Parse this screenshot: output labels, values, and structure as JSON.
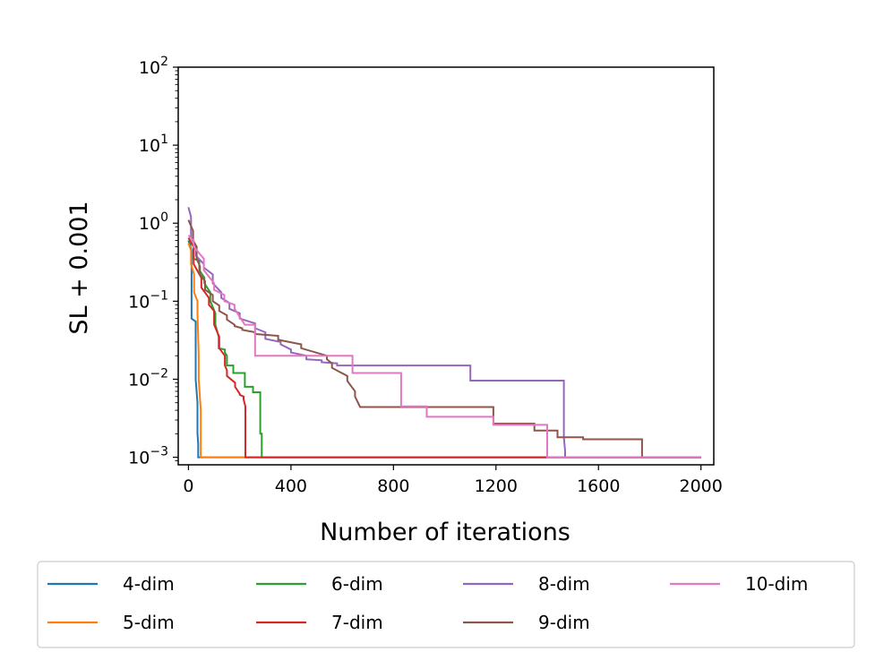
{
  "chart_data": {
    "type": "line",
    "title": "",
    "xlabel": "Number of iterations",
    "ylabel": "SL + 0.001",
    "yscale": "log",
    "xlim": [
      -40,
      2050
    ],
    "ylim": [
      0.0008,
      100
    ],
    "xticks": [
      0,
      400,
      800,
      1200,
      1600,
      2000
    ],
    "xtick_labels": [
      "0",
      "400",
      "800",
      "1200",
      "1600",
      "2000"
    ],
    "yticks": [
      {
        "value": 100,
        "base": "10",
        "exp": "2"
      },
      {
        "value": 10,
        "base": "10",
        "exp": "1"
      },
      {
        "value": 1,
        "base": "10",
        "exp": "0"
      },
      {
        "value": 0.1,
        "base": "10",
        "exp": "−1"
      },
      {
        "value": 0.01,
        "base": "10",
        "exp": "−2"
      },
      {
        "value": 0.001,
        "base": "10",
        "exp": "−3"
      }
    ],
    "legend_position": "below",
    "series": [
      {
        "name": "4-dim",
        "color": "#1f77b4",
        "x": [
          0,
          12,
          12,
          28,
          28,
          35,
          35,
          38,
          38,
          2000
        ],
        "y": [
          0.6,
          0.45,
          0.06,
          0.055,
          0.01,
          0.005,
          0.002,
          0.0015,
          0.001,
          0.001
        ]
      },
      {
        "name": "5-dim",
        "color": "#ff7f0e",
        "x": [
          0,
          10,
          10,
          22,
          22,
          35,
          35,
          40,
          40,
          48,
          48,
          2000
        ],
        "y": [
          0.55,
          0.45,
          0.3,
          0.22,
          0.13,
          0.1,
          0.07,
          0.02,
          0.01,
          0.004,
          0.001,
          0.001
        ]
      },
      {
        "name": "6-dim",
        "color": "#2ca02c",
        "x": [
          0,
          20,
          20,
          42,
          42,
          62,
          62,
          85,
          85,
          105,
          105,
          118,
          118,
          142,
          142,
          150,
          150,
          175,
          175,
          220,
          220,
          252,
          252,
          280,
          280,
          286,
          286,
          2000
        ],
        "y": [
          0.6,
          0.5,
          0.35,
          0.33,
          0.25,
          0.2,
          0.17,
          0.13,
          0.1,
          0.07,
          0.05,
          0.035,
          0.025,
          0.024,
          0.022,
          0.02,
          0.015,
          0.015,
          0.012,
          0.012,
          0.008,
          0.008,
          0.0068,
          0.0068,
          0.002,
          0.002,
          0.001,
          0.001
        ]
      },
      {
        "name": "7-dim",
        "color": "#d62728",
        "x": [
          0,
          20,
          20,
          50,
          50,
          80,
          80,
          100,
          100,
          120,
          120,
          142,
          142,
          150,
          150,
          182,
          182,
          200,
          200,
          215,
          215,
          222,
          222,
          2000
        ],
        "y": [
          0.65,
          0.5,
          0.3,
          0.2,
          0.15,
          0.11,
          0.09,
          0.075,
          0.05,
          0.035,
          0.025,
          0.02,
          0.015,
          0.013,
          0.011,
          0.009,
          0.008,
          0.0065,
          0.0063,
          0.006,
          0.0055,
          0.0045,
          0.001,
          0.001
        ]
      },
      {
        "name": "8-dim",
        "color": "#9467bd",
        "x": [
          0,
          10,
          10,
          30,
          30,
          60,
          60,
          95,
          95,
          128,
          128,
          160,
          160,
          200,
          200,
          260,
          260,
          300,
          300,
          360,
          360,
          400,
          400,
          460,
          460,
          520,
          520,
          580,
          580,
          610,
          610,
          1100,
          1100,
          1465,
          1465,
          1470,
          1470,
          2000
        ],
        "y": [
          1.6,
          1.2,
          0.65,
          0.5,
          0.38,
          0.3,
          0.27,
          0.22,
          0.17,
          0.13,
          0.11,
          0.095,
          0.08,
          0.07,
          0.06,
          0.052,
          0.045,
          0.04,
          0.033,
          0.03,
          0.028,
          0.024,
          0.022,
          0.02,
          0.018,
          0.0175,
          0.0165,
          0.016,
          0.015,
          0.015,
          0.015,
          0.015,
          0.0096,
          0.0096,
          0.0018,
          0.0012,
          0.001,
          0.001
        ]
      },
      {
        "name": "9-dim",
        "color": "#8c564b",
        "x": [
          0,
          18,
          18,
          32,
          32,
          45,
          45,
          65,
          65,
          95,
          95,
          120,
          120,
          150,
          150,
          180,
          180,
          210,
          210,
          260,
          260,
          350,
          350,
          440,
          440,
          540,
          540,
          560,
          560,
          620,
          620,
          650,
          650,
          670,
          670,
          1100,
          1100,
          1190,
          1190,
          1350,
          1350,
          1440,
          1440,
          1540,
          1540,
          1580,
          1580,
          1770,
          1770,
          2000
        ],
        "y": [
          1.1,
          0.8,
          0.6,
          0.5,
          0.35,
          0.28,
          0.22,
          0.18,
          0.14,
          0.12,
          0.1,
          0.088,
          0.075,
          0.066,
          0.058,
          0.05,
          0.048,
          0.045,
          0.043,
          0.04,
          0.038,
          0.036,
          0.032,
          0.028,
          0.025,
          0.02,
          0.018,
          0.016,
          0.014,
          0.011,
          0.0095,
          0.007,
          0.006,
          0.0044,
          0.0044,
          0.0044,
          0.0044,
          0.0044,
          0.0027,
          0.0027,
          0.0022,
          0.0022,
          0.0018,
          0.0018,
          0.0017,
          0.0017,
          0.0017,
          0.0017,
          0.001,
          0.001
        ]
      },
      {
        "name": "10-dim",
        "color": "#e377c2",
        "x": [
          0,
          20,
          20,
          60,
          60,
          100,
          100,
          140,
          140,
          180,
          180,
          220,
          220,
          260,
          260,
          300,
          300,
          380,
          380,
          640,
          640,
          760,
          760,
          830,
          830,
          930,
          930,
          1190,
          1190,
          1390,
          1390,
          1400,
          1400,
          2000
        ],
        "y": [
          0.7,
          0.6,
          0.5,
          0.35,
          0.25,
          0.17,
          0.14,
          0.12,
          0.1,
          0.09,
          0.08,
          0.05,
          0.05,
          0.05,
          0.02,
          0.02,
          0.02,
          0.02,
          0.02,
          0.02,
          0.012,
          0.012,
          0.012,
          0.012,
          0.0045,
          0.0045,
          0.0033,
          0.0033,
          0.0026,
          0.0026,
          0.0026,
          0.0026,
          0.001,
          0.001
        ]
      }
    ]
  }
}
